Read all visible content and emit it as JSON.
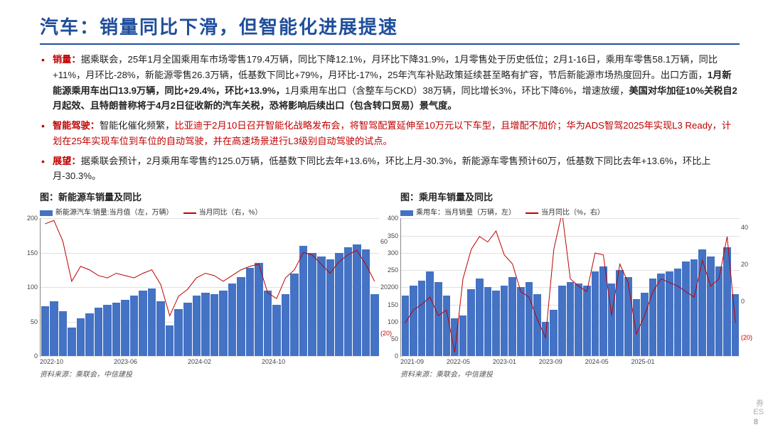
{
  "title": "汽车：销量同比下滑，但智能化进展提速",
  "bullets": {
    "b1_label": "销量：",
    "b1_text_a": "据乘联会，25年1月全国乘用车市场零售179.4万辆，同比下降12.1%，月环比下降31.9%，1月零售处于历史低位；2月1-16日，乘用车零售58.1万辆，同比+11%，月环比-28%，新能源零售26.3万辆，低基数下同比+79%，月环比-17%，25年汽车补贴政策延续甚至略有扩容，节后新能源市场热度回升。出口方面，",
    "b1_text_b": "1月新能源乘用车出口13.9万辆，同比+29.4%，环比+13.9%，",
    "b1_text_c": "1月乘用车出口（含整车与CKD）38万辆，同比增长3%，环比下降6%，增速放缓，",
    "b1_text_d": "美国对华加征10%关税自2月起效、且特朗普称将于4月2日征收新的汽车关税，恐将影响后续出口（包含转口贸易）景气度。",
    "b2_label": "智能驾驶：",
    "b2_text_a": "智能化催化频繁，",
    "b2_text_b": "比亚迪于2月10日召开智能化战略发布会，将智驾配置延伸至10万元以下车型，且增配不加价；华为ADS智驾2025年实现L3 Ready，计划在25年实现车位到车位的自动驾驶，并在高速场景进行L3级别自动驾驶的试点。",
    "b3_label": "展望：",
    "b3_text": "据乘联会预计，2月乘用车零售约125.0万辆，低基数下同比去年+13.6%，环比上月-30.3%，新能源车零售预计60万，低基数下同比去年+13.6%，环比上月-30.3%。"
  },
  "chart1": {
    "title": "图：新能源车销量及同比",
    "legend_bar": "新能源汽车:销量:当月值（左，万辆）",
    "legend_line": "当月同比（右，%）",
    "yl_max": 200,
    "yl_ticks": [
      0,
      50,
      100,
      150,
      200
    ],
    "yr_ticks": [
      {
        "v": -20,
        "t": "(20)"
      },
      {
        "v": 20,
        "t": "20"
      },
      {
        "v": 60,
        "t": "60"
      }
    ],
    "yr_min": -40,
    "yr_max": 80,
    "bars": [
      72,
      80,
      65,
      42,
      55,
      62,
      70,
      75,
      78,
      82,
      88,
      95,
      98,
      80,
      45,
      68,
      78,
      88,
      92,
      90,
      95,
      105,
      115,
      128,
      135,
      95,
      75,
      90,
      120,
      160,
      150,
      145,
      140,
      150,
      158,
      162,
      155,
      90
    ],
    "line": [
      75,
      78,
      60,
      25,
      38,
      35,
      30,
      28,
      32,
      30,
      28,
      32,
      35,
      22,
      -5,
      12,
      18,
      28,
      32,
      30,
      25,
      30,
      35,
      38,
      40,
      15,
      10,
      28,
      35,
      50,
      48,
      40,
      32,
      42,
      48,
      52,
      40,
      25
    ],
    "xlabels": [
      "2022-10",
      "",
      "",
      "",
      "",
      "",
      "",
      "",
      "2023-06",
      "",
      "",
      "",
      "",
      "",
      "",
      "",
      "2024-02",
      "",
      "",
      "",
      "",
      "",
      "",
      "",
      "2024-10",
      "",
      "",
      "",
      "",
      "",
      "",
      "",
      "",
      "",
      "",
      "",
      "",
      ""
    ],
    "source": "资料来源：乘联会，中信建投",
    "bar_color": "#4472c4",
    "line_color": "#c00000"
  },
  "chart2": {
    "title": "图：乘用车销量及同比",
    "legend_bar": "乘用车：当月销量（万辆，左）",
    "legend_line": "当月同比（%，右）",
    "yl_max": 400,
    "yl_ticks": [
      0,
      50,
      100,
      150,
      200,
      250,
      300,
      350,
      400
    ],
    "yr_ticks": [
      {
        "v": -20,
        "t": "(20)"
      },
      {
        "v": 0,
        "t": "0"
      },
      {
        "v": 20,
        "t": "20"
      },
      {
        "v": 40,
        "t": "40"
      }
    ],
    "yr_min": -30,
    "yr_max": 45,
    "bars": [
      175,
      205,
      220,
      245,
      215,
      175,
      110,
      118,
      195,
      225,
      200,
      190,
      205,
      230,
      200,
      215,
      180,
      100,
      135,
      205,
      215,
      210,
      205,
      245,
      260,
      210,
      250,
      230,
      165,
      185,
      225,
      240,
      245,
      255,
      275,
      280,
      310,
      290,
      260,
      315,
      180
    ],
    "line": [
      -12,
      -5,
      -2,
      2,
      -8,
      -5,
      -28,
      12,
      28,
      35,
      32,
      38,
      25,
      20,
      5,
      2,
      -10,
      -20,
      28,
      48,
      12,
      8,
      5,
      26,
      25,
      -8,
      20,
      10,
      -18,
      -8,
      5,
      12,
      10,
      8,
      5,
      2,
      22,
      8,
      12,
      35,
      -12
    ],
    "xlabels": [
      "2021-09",
      "",
      "",
      "",
      "",
      "2022-05",
      "",
      "",
      "",
      "",
      "2023-01",
      "",
      "",
      "",
      "",
      "2023-09",
      "",
      "",
      "",
      "",
      "2024-05",
      "",
      "",
      "",
      "",
      "2025-01",
      "",
      "",
      "",
      "",
      "",
      "",
      "",
      "",
      "",
      "",
      "",
      "",
      "",
      "",
      ""
    ],
    "source": "资料来源：乘联会，中信建投",
    "bar_color": "#4472c4",
    "line_color": "#c00000"
  },
  "pagenum": "8",
  "watermark_a": "券",
  "watermark_b": "ES"
}
